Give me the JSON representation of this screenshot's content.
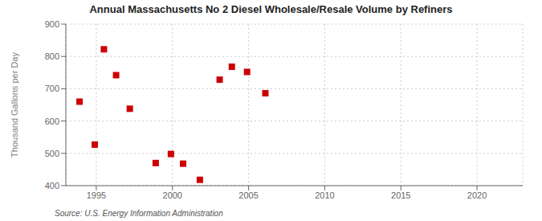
{
  "chart_data": {
    "type": "scatter",
    "title": "Annual Massachusetts No 2 Diesel Wholesale/Resale Volume by Refiners",
    "ylabel": "Thousand Gallons per Day",
    "annotation": "Source: U.S. Energy Information Administration",
    "x": [
      1993.9,
      1994.9,
      1995.5,
      1996.3,
      1997.2,
      1998.9,
      1999.9,
      2000.7,
      2001.8,
      2003.1,
      2003.9,
      2004.9,
      2006.1
    ],
    "values": [
      660,
      527,
      822,
      742,
      638,
      470,
      498,
      468,
      418,
      728,
      768,
      752,
      686
    ],
    "color": "#cc0000",
    "marker": "square",
    "xlim": [
      1993,
      2023
    ],
    "ylim": [
      400,
      900
    ],
    "xticks": [
      1995,
      2000,
      2005,
      2010,
      2015,
      2020
    ],
    "yticks": [
      400,
      500,
      600,
      700,
      800,
      900
    ],
    "grid": true
  }
}
